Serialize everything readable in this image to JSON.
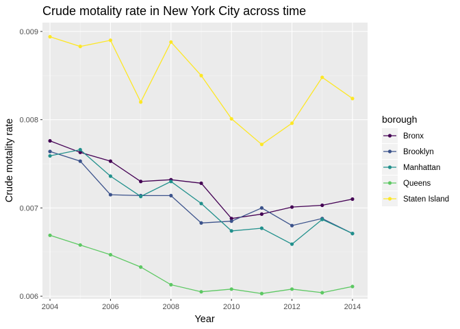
{
  "chart_data": {
    "type": "line",
    "title": "Crude motality rate in New York City across time",
    "xlabel": "Year",
    "ylabel": "Crude motality rate",
    "xlim": [
      2003.75,
      2014.5
    ],
    "ylim": [
      0.00597,
      0.0091
    ],
    "x_ticks": [
      2004,
      2006,
      2008,
      2010,
      2012,
      2014
    ],
    "y_ticks": [
      0.006,
      0.007,
      0.008,
      0.009
    ],
    "y_tick_labels": [
      "0.006",
      "0.007",
      "0.008",
      "0.009"
    ],
    "grid": true,
    "legend_position": "right",
    "legend_title": "borough",
    "x": [
      2004,
      2005,
      2006,
      2007,
      2008,
      2009,
      2010,
      2011,
      2012,
      2013,
      2014
    ],
    "series": [
      {
        "name": "Bronx",
        "color": "#440154",
        "values": [
          0.00776,
          0.00763,
          0.00753,
          0.0073,
          0.00732,
          0.00728,
          0.00688,
          0.00693,
          0.00701,
          0.00703,
          0.0071
        ]
      },
      {
        "name": "Brooklyn",
        "color": "#3B528B",
        "values": [
          0.00764,
          0.00753,
          0.00715,
          0.00714,
          0.00714,
          0.00683,
          0.00685,
          0.007,
          0.0068,
          0.00688,
          0.00671
        ]
      },
      {
        "name": "Manhattan",
        "color": "#21908C",
        "values": [
          0.00759,
          0.00766,
          0.00736,
          0.00713,
          0.0073,
          0.00705,
          0.00674,
          0.00677,
          0.00659,
          0.00687,
          0.00671
        ]
      },
      {
        "name": "Queens",
        "color": "#5DC863",
        "values": [
          0.00669,
          0.00658,
          0.00647,
          0.00633,
          0.00613,
          0.00605,
          0.00608,
          0.00603,
          0.00608,
          0.00604,
          0.00611
        ]
      },
      {
        "name": "Staten Island",
        "color": "#FDE725",
        "values": [
          0.00894,
          0.00883,
          0.0089,
          0.0082,
          0.00888,
          0.0085,
          0.00801,
          0.00772,
          0.00796,
          0.00848,
          0.00824
        ]
      }
    ]
  }
}
